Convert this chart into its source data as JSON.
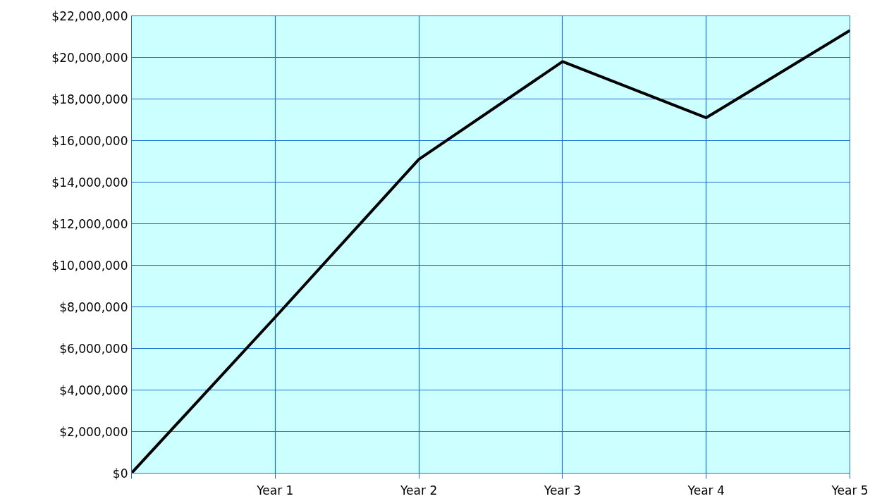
{
  "chart_data": {
    "type": "line",
    "categories": [
      null,
      "Year 1",
      "Year 2",
      "Year 3",
      "Year 4",
      "Year 5"
    ],
    "series": [
      {
        "color": "#000000",
        "values": [
          0,
          7500000,
          15100000,
          19800000,
          17100000,
          21300000
        ]
      }
    ],
    "ylim": [
      0,
      22000000
    ],
    "yticks": [
      {
        "value": 0,
        "label": "$0"
      },
      {
        "value": 2000000,
        "label": "$2,000,000"
      },
      {
        "value": 4000000,
        "label": "$4,000,000"
      },
      {
        "value": 6000000,
        "label": "$6,000,000"
      },
      {
        "value": 8000000,
        "label": "$8,000,000"
      },
      {
        "value": 10000000,
        "label": "$10,000,000"
      },
      {
        "value": 12000000,
        "label": "$12,000,000"
      },
      {
        "value": 14000000,
        "label": "$14,000,000"
      },
      {
        "value": 16000000,
        "label": "$16,000,000"
      },
      {
        "value": 18000000,
        "label": "$18,000,000"
      },
      {
        "value": 20000000,
        "label": "$20,000,000"
      },
      {
        "value": 22000000,
        "label": "$22,000,000"
      }
    ],
    "grid": true,
    "marker": "none",
    "line_style": "solid"
  }
}
